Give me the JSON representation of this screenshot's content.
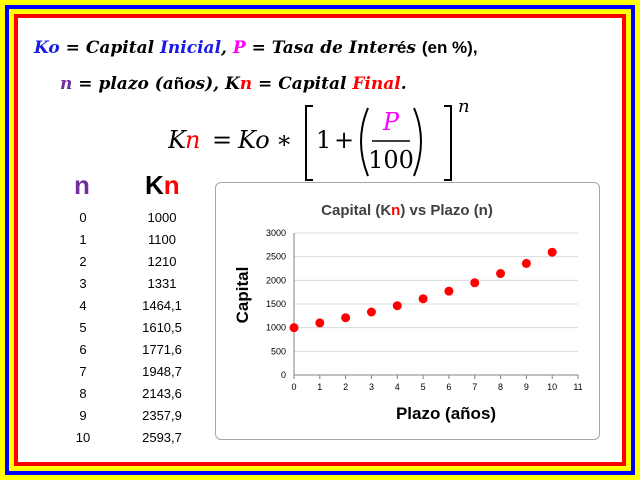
{
  "definitions": {
    "line1": [
      {
        "t": "Ko",
        "c": "c-blue"
      },
      {
        "t": " = Capital ",
        "c": ""
      },
      {
        "t": "Inicial",
        "c": "c-blue"
      },
      {
        "t": ",        ",
        "c": ""
      },
      {
        "t": "P",
        "c": "c-mag"
      },
      {
        "t": " = Tasa de Inter",
        "c": ""
      },
      {
        "t": "é",
        "c": "plain"
      },
      {
        "t": "s ",
        "c": ""
      },
      {
        "t": "(en %),",
        "c": "plain"
      }
    ],
    "line2": [
      {
        "t": "n",
        "c": "c-pur"
      },
      {
        "t": " = plazo (a",
        "c": ""
      },
      {
        "t": "ñ",
        "c": "plain"
      },
      {
        "t": "os),  K",
        "c": ""
      },
      {
        "t": "n",
        "c": "c-red"
      },
      {
        "t": " = Capital ",
        "c": ""
      },
      {
        "t": "Final",
        "c": "c-red"
      },
      {
        "t": ".",
        "c": ""
      }
    ]
  },
  "formula": {
    "lhs_k": "K",
    "lhs_n": "n",
    "eq": "=",
    "ko": "Ko",
    "times": "∗",
    "one": "1",
    "plus": "+",
    "num": "P",
    "den": "100",
    "exp": "n"
  },
  "table": {
    "header_n": "n",
    "header_k": "K",
    "header_k_sub": "n",
    "rows": [
      {
        "n": "0",
        "kn": "1000"
      },
      {
        "n": "1",
        "kn": "1100"
      },
      {
        "n": "2",
        "kn": "1210"
      },
      {
        "n": "3",
        "kn": "1331"
      },
      {
        "n": "4",
        "kn": "1464,1"
      },
      {
        "n": "5",
        "kn": "1610,5"
      },
      {
        "n": "6",
        "kn": "1771,6"
      },
      {
        "n": "7",
        "kn": "1948,7"
      },
      {
        "n": "8",
        "kn": "2143,6"
      },
      {
        "n": "9",
        "kn": "2357,9"
      },
      {
        "n": "10",
        "kn": "2593,7"
      }
    ]
  },
  "colors": {
    "point": "#ff0000",
    "n_header": "#7030a0",
    "kn_red": "#ff0000",
    "grid": "#d9d9d9"
  },
  "chart_data": {
    "type": "scatter",
    "title_parts": [
      "Capital (K",
      "n",
      ") vs Plazo (n)"
    ],
    "xlabel": "Plazo (años)",
    "ylabel": "Capital",
    "xlim": [
      0,
      11
    ],
    "ylim": [
      0,
      3000
    ],
    "xticks": [
      0,
      1,
      2,
      3,
      4,
      5,
      6,
      7,
      8,
      9,
      10,
      11
    ],
    "yticks": [
      0,
      500,
      1000,
      1500,
      2000,
      2500,
      3000
    ],
    "grid": "horizontal",
    "legend": "none",
    "x": [
      0,
      1,
      2,
      3,
      4,
      5,
      6,
      7,
      8,
      9,
      10
    ],
    "y": [
      1000,
      1100,
      1210,
      1331,
      1464.1,
      1610.5,
      1771.6,
      1948.7,
      2143.6,
      2357.9,
      2593.7
    ]
  }
}
